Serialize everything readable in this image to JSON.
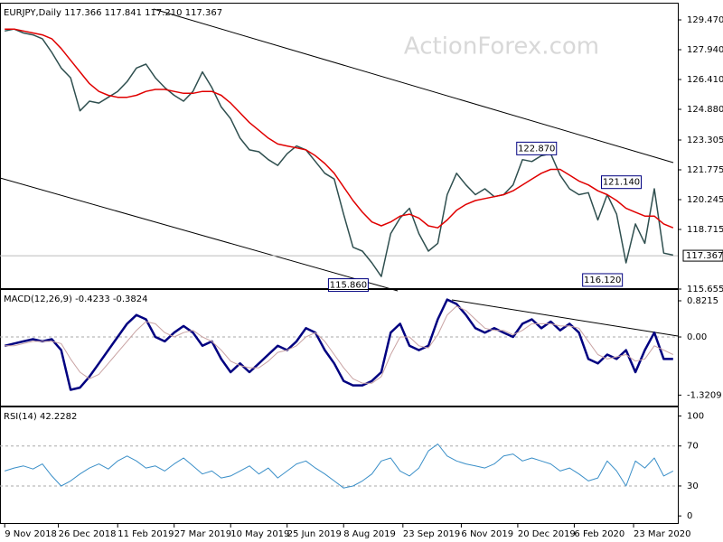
{
  "chart_data": [
    {
      "type": "line",
      "title": "EURJPY,Daily  117.366 117.841 117.210 117.367",
      "watermark": "ActionForex.com",
      "xlim": [
        0,
        72
      ],
      "ylim": [
        115.655,
        130.12
      ],
      "yticks": [
        {
          "value": 129.47,
          "label": "129.470"
        },
        {
          "value": 127.94,
          "label": "127.940"
        },
        {
          "value": 126.41,
          "label": "126.410"
        },
        {
          "value": 124.88,
          "label": "124.880"
        },
        {
          "value": 123.305,
          "label": "123.305"
        },
        {
          "value": 121.775,
          "label": "121.775"
        },
        {
          "value": 120.245,
          "label": "120.245"
        },
        {
          "value": 118.715,
          "label": "118.715"
        },
        {
          "value": 115.655,
          "label": "115.655"
        }
      ],
      "last": {
        "value": 117.367,
        "label": "117.367"
      },
      "annotations": [
        {
          "value": 122.87,
          "label": "122.870",
          "x": 57
        },
        {
          "value": 121.14,
          "label": "121.140",
          "x": 66
        },
        {
          "value": 116.12,
          "label": "116.120",
          "x": 64
        },
        {
          "value": 115.86,
          "label": "115.860",
          "x": 37
        }
      ],
      "series": [
        {
          "color": "#2f4f4f",
          "values": [
            128.9,
            129.0,
            128.8,
            128.7,
            128.5,
            127.8,
            127.0,
            126.5,
            124.8,
            125.3,
            125.2,
            125.5,
            125.8,
            126.3,
            127.0,
            127.2,
            126.5,
            126.0,
            125.6,
            125.3,
            125.8,
            126.8,
            126.0,
            125.0,
            124.4,
            123.4,
            122.8,
            122.7,
            122.3,
            122.0,
            122.6,
            123.0,
            122.8,
            122.2,
            121.6,
            121.3,
            119.5,
            117.8,
            117.6,
            117.0,
            116.3,
            118.5,
            119.3,
            119.8,
            118.5,
            117.6,
            118.0,
            120.5,
            121.6,
            121.0,
            120.5,
            120.8,
            120.4,
            120.5,
            121.0,
            122.3,
            122.2,
            122.5,
            122.6,
            121.5,
            120.8,
            120.5,
            120.6,
            119.2,
            120.5,
            119.5,
            117.0,
            119.0,
            118.0,
            120.8,
            117.5,
            117.4
          ]
        },
        {
          "color": "#e00000",
          "values": [
            129.0,
            129.0,
            128.9,
            128.8,
            128.7,
            128.5,
            128.0,
            127.4,
            126.8,
            126.2,
            125.8,
            125.6,
            125.5,
            125.5,
            125.6,
            125.8,
            125.9,
            125.9,
            125.8,
            125.7,
            125.7,
            125.8,
            125.8,
            125.6,
            125.2,
            124.7,
            124.2,
            123.8,
            123.4,
            123.1,
            123.0,
            122.9,
            122.8,
            122.5,
            122.1,
            121.6,
            120.9,
            120.2,
            119.6,
            119.1,
            118.9,
            119.1,
            119.4,
            119.5,
            119.3,
            118.9,
            118.8,
            119.2,
            119.7,
            120.0,
            120.2,
            120.3,
            120.4,
            120.5,
            120.7,
            121.0,
            121.3,
            121.6,
            121.8,
            121.8,
            121.5,
            121.2,
            121.0,
            120.7,
            120.5,
            120.2,
            119.8,
            119.6,
            119.4,
            119.4,
            119.0,
            118.8
          ]
        }
      ]
    },
    {
      "type": "line",
      "title": "MACD(12,26,9) -0.4233 -0.3824",
      "xlim": [
        0,
        72
      ],
      "ylim": [
        -1.58,
        0.986
      ],
      "yticks": [
        0.8215,
        {
          "value": 0,
          "label": "0.00"
        },
        -1.3209
      ],
      "series": [
        {
          "color": "#000080",
          "width": 2.5,
          "values": [
            -0.2,
            -0.15,
            -0.1,
            -0.05,
            -0.1,
            -0.05,
            -0.3,
            -1.2,
            -1.15,
            -0.9,
            -0.6,
            -0.3,
            0.0,
            0.3,
            0.5,
            0.4,
            0.0,
            -0.1,
            0.1,
            0.25,
            0.1,
            -0.2,
            -0.1,
            -0.5,
            -0.8,
            -0.6,
            -0.8,
            -0.6,
            -0.4,
            -0.2,
            -0.3,
            -0.1,
            0.2,
            0.1,
            -0.3,
            -0.6,
            -1.0,
            -1.1,
            -1.1,
            -1.0,
            -0.8,
            0.1,
            0.3,
            -0.2,
            -0.3,
            -0.2,
            0.4,
            0.85,
            0.75,
            0.5,
            0.2,
            0.1,
            0.2,
            0.1,
            0.0,
            0.3,
            0.4,
            0.2,
            0.35,
            0.15,
            0.3,
            0.1,
            -0.5,
            -0.6,
            -0.4,
            -0.5,
            -0.3,
            -0.8,
            -0.3,
            0.1,
            -0.5,
            -0.5
          ]
        },
        {
          "color": "#c9a3a3",
          "width": 1,
          "values": [
            -0.2,
            -0.2,
            -0.15,
            -0.1,
            -0.1,
            -0.1,
            -0.15,
            -0.5,
            -0.8,
            -0.95,
            -0.85,
            -0.6,
            -0.35,
            -0.1,
            0.15,
            0.35,
            0.3,
            0.1,
            0.0,
            0.1,
            0.15,
            0.0,
            -0.1,
            -0.3,
            -0.55,
            -0.65,
            -0.7,
            -0.7,
            -0.55,
            -0.35,
            -0.3,
            -0.2,
            0.0,
            0.1,
            -0.1,
            -0.4,
            -0.7,
            -0.95,
            -1.05,
            -1.05,
            -0.9,
            -0.4,
            0.0,
            0.0,
            -0.2,
            -0.25,
            0.05,
            0.5,
            0.7,
            0.6,
            0.4,
            0.2,
            0.15,
            0.15,
            0.05,
            0.15,
            0.3,
            0.3,
            0.3,
            0.25,
            0.25,
            0.2,
            -0.1,
            -0.4,
            -0.5,
            -0.45,
            -0.4,
            -0.55,
            -0.5,
            -0.2,
            -0.3,
            -0.4
          ]
        }
      ]
    },
    {
      "type": "line",
      "title": "RSI(14) 42.2282",
      "xlim": [
        0,
        72
      ],
      "ylim": [
        -8,
        105
      ],
      "yticks": [
        100,
        70,
        30,
        0
      ],
      "dashed": [
        70,
        30
      ],
      "xticks": [
        {
          "value": 0.5,
          "label": "9 Nov 2018"
        },
        {
          "value": 6.2,
          "label": "26 Dec 2018"
        },
        {
          "value": 12.5,
          "label": "11 Feb 2019"
        },
        {
          "value": 18.5,
          "label": "27 Mar 2019"
        },
        {
          "value": 24.5,
          "label": "10 May 2019"
        },
        {
          "value": 30.5,
          "label": "25 Jun 2019"
        },
        {
          "value": 36.5,
          "label": "8 Aug 2019"
        },
        {
          "value": 42.8,
          "label": "23 Sep 2019"
        },
        {
          "value": 49,
          "label": "6 Nov 2019"
        },
        {
          "value": 55,
          "label": "20 Dec 2019"
        },
        {
          "value": 61,
          "label": "6 Feb 2020"
        },
        {
          "value": 67.3,
          "label": "23 Mar 2020"
        }
      ],
      "series": [
        {
          "color": "#3a8fc8",
          "width": 1,
          "values": [
            45,
            48,
            50,
            47,
            52,
            40,
            30,
            35,
            42,
            48,
            52,
            47,
            55,
            60,
            55,
            48,
            50,
            45,
            52,
            58,
            50,
            42,
            45,
            38,
            40,
            45,
            50,
            42,
            48,
            38,
            45,
            52,
            55,
            48,
            42,
            35,
            28,
            30,
            35,
            42,
            55,
            58,
            45,
            40,
            48,
            65,
            72,
            60,
            55,
            52,
            50,
            48,
            52,
            60,
            62,
            55,
            58,
            55,
            52,
            45,
            48,
            42,
            35,
            38,
            55,
            45,
            30,
            55,
            48,
            58,
            40,
            45
          ]
        }
      ]
    }
  ]
}
